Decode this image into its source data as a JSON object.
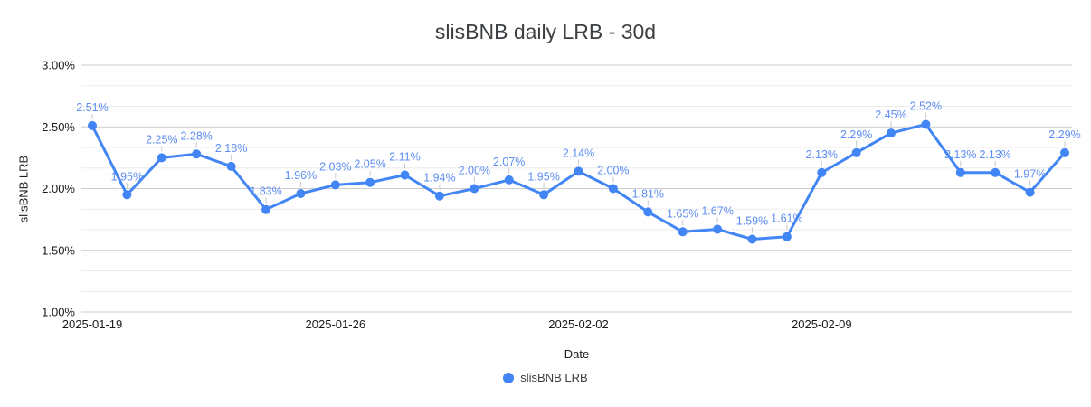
{
  "chart_data": {
    "type": "line",
    "title": "slisBNB daily LRB - 30d",
    "xlabel": "Date",
    "ylabel": "slisBNB LRB",
    "legend_position": "bottom",
    "grid": true,
    "ylim": [
      1.0,
      3.0
    ],
    "minor_gridlines_per_major": 3,
    "yticks": [
      {
        "value": 3.0,
        "label": "3.00%"
      },
      {
        "value": 2.5,
        "label": "2.50%"
      },
      {
        "value": 2.0,
        "label": "2.00%"
      },
      {
        "value": 1.5,
        "label": "1.50%"
      },
      {
        "value": 1.0,
        "label": "1.00%"
      }
    ],
    "x": [
      "2025-01-19",
      "2025-01-20",
      "2025-01-21",
      "2025-01-22",
      "2025-01-23",
      "2025-01-24",
      "2025-01-25",
      "2025-01-26",
      "2025-01-27",
      "2025-01-28",
      "2025-01-29",
      "2025-01-30",
      "2025-01-31",
      "2025-02-01",
      "2025-02-02",
      "2025-02-03",
      "2025-02-04",
      "2025-02-05",
      "2025-02-06",
      "2025-02-07",
      "2025-02-08",
      "2025-02-09",
      "2025-02-10",
      "2025-02-11",
      "2025-02-12",
      "2025-02-13",
      "2025-02-14",
      "2025-02-15",
      "2025-02-16"
    ],
    "xticks": [
      {
        "index": 0,
        "label": "2025-01-19"
      },
      {
        "index": 7,
        "label": "2025-01-26"
      },
      {
        "index": 14,
        "label": "2025-02-02"
      },
      {
        "index": 21,
        "label": "2025-02-09"
      }
    ],
    "series": [
      {
        "name": "slisBNB LRB",
        "values": [
          2.51,
          1.95,
          2.25,
          2.28,
          2.18,
          1.83,
          1.96,
          2.03,
          2.05,
          2.11,
          1.94,
          2.0,
          2.07,
          1.95,
          2.14,
          2.0,
          1.81,
          1.65,
          1.67,
          1.59,
          1.61,
          2.13,
          2.29,
          2.45,
          2.52,
          2.13,
          2.13,
          1.97,
          2.29
        ],
        "point_labels": [
          "2.51%",
          "1.95%",
          "2.25%",
          "2.28%",
          "2.18%",
          "1.83%",
          "1.96%",
          "2.03%",
          "2.05%",
          "2.11%",
          "1.94%",
          "2.00%",
          "2.07%",
          "1.95%",
          "2.14%",
          "2.00%",
          "1.81%",
          "1.65%",
          "1.67%",
          "1.59%",
          "1.61%",
          "2.13%",
          "2.29%",
          "2.45%",
          "2.52%",
          "2.13%",
          "2.13%",
          "1.97%",
          "2.29%"
        ]
      }
    ],
    "colors": {
      "series": "#4285f4",
      "annotation": "#5e8ef2",
      "gridline_major": "#cccccc",
      "gridline_minor": "#ebebeb",
      "axis_text": "#1a1a1a",
      "title_text": "#3c4043",
      "stem": "#c9c9c9",
      "background": "#ffffff"
    }
  }
}
